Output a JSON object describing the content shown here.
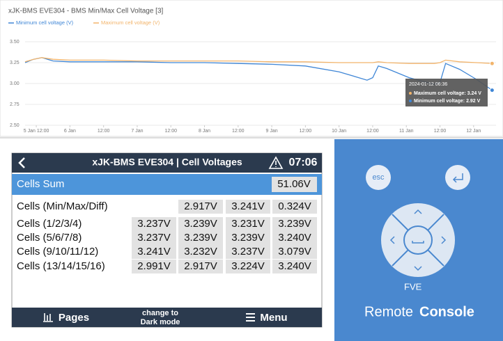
{
  "chart_data": {
    "type": "line",
    "title": "xJK-BMS EVE304 - BMS Min/Max Cell Voltage [3]",
    "x": [
      "2024-01-05T08:00",
      "2024-01-05T11:00",
      "2024-01-05T14:00",
      "2024-01-05T18:00",
      "2024-01-06T00:00",
      "2024-01-06T12:00",
      "2024-01-07T00:00",
      "2024-01-07T12:00",
      "2024-01-08T00:00",
      "2024-01-08T12:00",
      "2024-01-09T00:00",
      "2024-01-09T12:00",
      "2024-01-10T00:00",
      "2024-01-10T10:00",
      "2024-01-10T12:00",
      "2024-01-10T14:00",
      "2024-01-10T17:00",
      "2024-01-11T01:00",
      "2024-01-11T10:00",
      "2024-01-11T12:00",
      "2024-01-11T14:00",
      "2024-01-11T19:00",
      "2024-01-12T01:00",
      "2024-01-12T06:36"
    ],
    "series": [
      {
        "name": "Minimum cell voltage (V)",
        "color": "#3f86d6",
        "values": [
          3.25,
          3.29,
          3.31,
          3.27,
          3.26,
          3.26,
          3.26,
          3.25,
          3.25,
          3.24,
          3.23,
          3.21,
          3.14,
          3.04,
          3.07,
          3.21,
          3.18,
          3.07,
          2.99,
          3.01,
          3.24,
          3.17,
          3.05,
          2.92
        ]
      },
      {
        "name": "Maximum cell voltage (V)",
        "color": "#f2b46b",
        "values": [
          3.26,
          3.29,
          3.31,
          3.29,
          3.28,
          3.28,
          3.27,
          3.27,
          3.27,
          3.27,
          3.26,
          3.26,
          3.25,
          3.25,
          3.25,
          3.26,
          3.25,
          3.24,
          3.24,
          3.25,
          3.28,
          3.26,
          3.25,
          3.24
        ]
      }
    ],
    "xlim": [
      "2024-01-05T08:00",
      "2024-01-12T08:00"
    ],
    "xticks": [
      {
        "value": "2024-01-05T12:00",
        "label": "5 Jan 12:00"
      },
      {
        "value": "2024-01-06T00:00",
        "label": "6 Jan"
      },
      {
        "value": "2024-01-06T12:00",
        "label": "12:00"
      },
      {
        "value": "2024-01-07T00:00",
        "label": "7 Jan"
      },
      {
        "value": "2024-01-07T12:00",
        "label": "12:00"
      },
      {
        "value": "2024-01-08T00:00",
        "label": "8 Jan"
      },
      {
        "value": "2024-01-08T12:00",
        "label": "12:00"
      },
      {
        "value": "2024-01-09T00:00",
        "label": "9 Jan"
      },
      {
        "value": "2024-01-09T12:00",
        "label": "12:00"
      },
      {
        "value": "2024-01-10T00:00",
        "label": "10 Jan"
      },
      {
        "value": "2024-01-10T12:00",
        "label": "12:00"
      },
      {
        "value": "2024-01-11T00:00",
        "label": "11 Jan"
      },
      {
        "value": "2024-01-11T12:00",
        "label": "12:00"
      },
      {
        "value": "2024-01-12T00:00",
        "label": "12 Jan"
      }
    ],
    "ylim": [
      2.5,
      3.5
    ],
    "yticks": [
      {
        "value": 2.5,
        "label": "2.50"
      },
      {
        "value": 2.75,
        "label": "2.75"
      },
      {
        "value": 3,
        "label": "3.00"
      },
      {
        "value": 3.25,
        "label": "3.25"
      },
      {
        "value": 3.5,
        "label": "3.50"
      }
    ],
    "grid": true,
    "tooltip": {
      "title": "2024-01-12 06:36",
      "lines": [
        "Maximum cell voltage: 3.24 V",
        "Minimum cell voltage: 2.92 V"
      ]
    }
  },
  "console": {
    "header": {
      "title": "xJK-BMS EVE304 | Cell Voltages",
      "time": "07:06"
    },
    "sum": {
      "label": "Cells Sum",
      "value": "51.06V"
    },
    "rows": [
      {
        "label": "Cells (Min/Max/Diff)",
        "values": [
          "2.917V",
          "3.241V",
          "0.324V"
        ]
      },
      {
        "label": "Cells (1/2/3/4)",
        "values": [
          "3.237V",
          "3.239V",
          "3.231V",
          "3.239V"
        ]
      },
      {
        "label": "Cells (5/6/7/8)",
        "values": [
          "3.237V",
          "3.239V",
          "3.239V",
          "3.240V"
        ]
      },
      {
        "label": "Cells (9/10/11/12)",
        "values": [
          "3.241V",
          "3.232V",
          "3.237V",
          "3.079V"
        ]
      },
      {
        "label": "Cells (13/14/15/16)",
        "values": [
          "2.991V",
          "2.917V",
          "3.224V",
          "3.240V"
        ]
      }
    ],
    "footer": {
      "pages": "Pages",
      "mode": [
        "change to",
        "Dark mode"
      ],
      "menu": "Menu"
    }
  },
  "remote": {
    "esc": "esc",
    "device": "FVE",
    "brand": [
      "Remote",
      "Console"
    ]
  }
}
